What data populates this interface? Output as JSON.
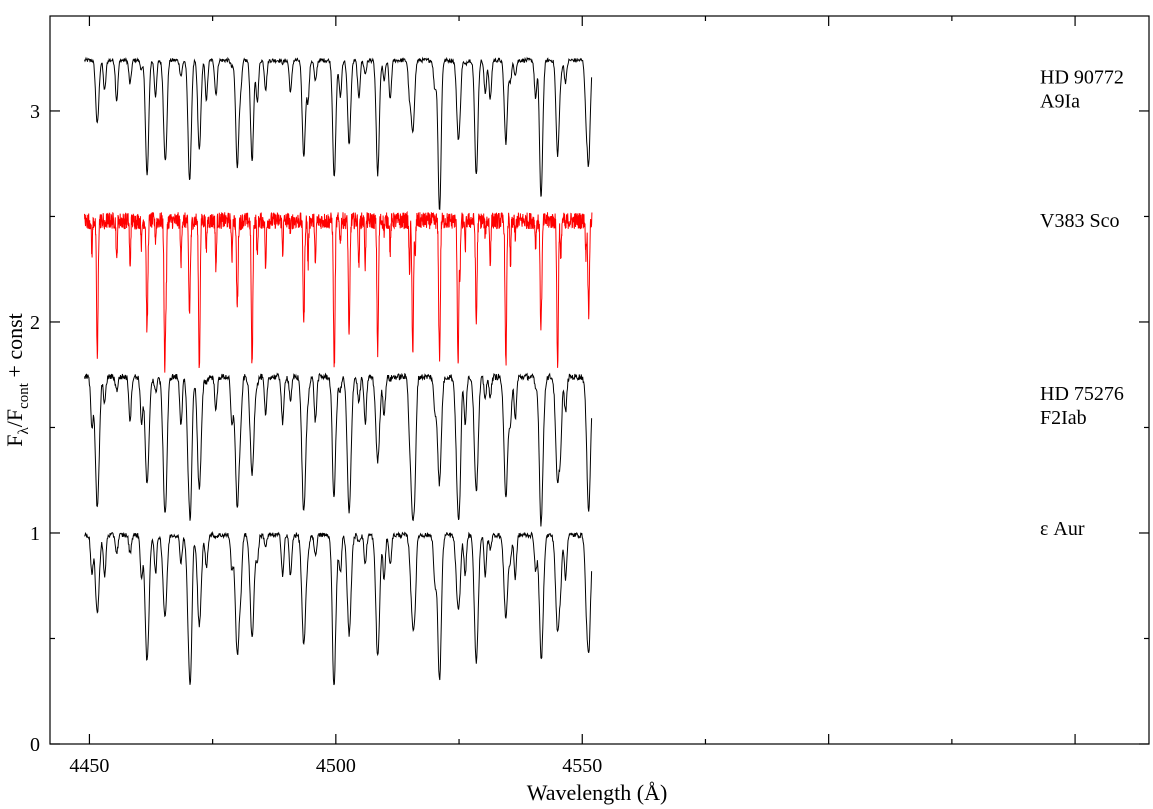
{
  "chart_data": {
    "type": "line",
    "title": "",
    "xlabel": "Wavelength (Å)",
    "ylabel_main": "F",
    "ylabel_sub1": "λ",
    "ylabel_mid": "/F",
    "ylabel_sub2": "cont",
    "ylabel_tail": " + const",
    "xlim": [
      4442,
      4665
    ],
    "ylim": [
      0,
      3.45
    ],
    "x_ticks": [
      4450,
      4500,
      4550
    ],
    "y_ticks": [
      0,
      1,
      2,
      3
    ],
    "grid": false,
    "x_range_data": [
      4449,
      4552
    ],
    "line_centers": [
      4451.6,
      4461.7,
      4465.3,
      4470.3,
      4472.3,
      4480.0,
      4483.0,
      4493.5,
      4499.7,
      4502.7,
      4508.5,
      4515.6,
      4521.0,
      4524.8,
      4528.5,
      4534.5,
      4541.7,
      4545.0,
      4551.3
    ],
    "series": [
      {
        "name": "HD 90772",
        "sptype": "A9Ia",
        "color": "#000000",
        "continuum": 3.24,
        "depth": 0.55,
        "noise": 0.01
      },
      {
        "name": "V383 Sco",
        "sptype": "",
        "color": "#ff0000",
        "continuum": 2.48,
        "depth": 0.7,
        "noise": 0.04
      },
      {
        "name": "HD 75276",
        "sptype": "F2Iab",
        "color": "#000000",
        "continuum": 1.74,
        "depth": 0.65,
        "noise": 0.015
      },
      {
        "name": "ε Aur",
        "sptype": "",
        "color": "#000000",
        "continuum": 0.99,
        "depth": 0.6,
        "noise": 0.012
      }
    ]
  }
}
